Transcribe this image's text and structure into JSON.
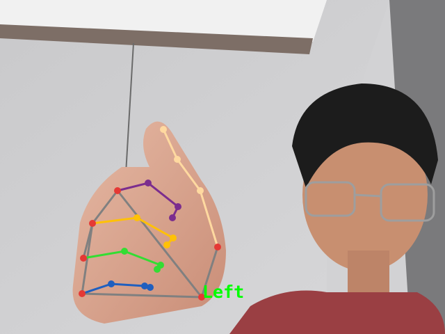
{
  "overlay": {
    "handedness_label": "Left",
    "label_color": "#00ff00"
  },
  "colors": {
    "wrist_and_knuckles": "#e53935",
    "palm_lines": "#808080",
    "thumb": "#ffd9a0",
    "index": "#7b2d8e",
    "middle": "#ffc107",
    "ring": "#33dd33",
    "pinky": "#1f5fbf"
  }
}
